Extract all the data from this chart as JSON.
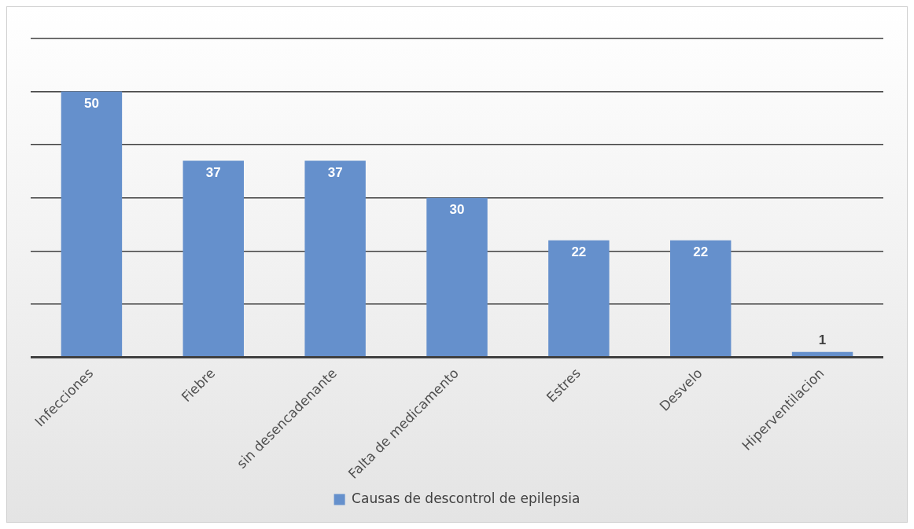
{
  "chart_data": {
    "type": "bar",
    "categories": [
      "Infecciones",
      "Fiebre",
      "sin desencadenante",
      "Falta de medicamento",
      "Estres",
      "Desvelo",
      "Hiperventilacion"
    ],
    "series": [
      {
        "name": "Causas de descontrol de epilepsia",
        "color": "#6590cc",
        "values": [
          50,
          37,
          37,
          30,
          22,
          22,
          1
        ]
      }
    ],
    "ylim": [
      0,
      60
    ],
    "yticks": [
      {
        "value": 0,
        "label": null
      },
      {
        "value": 10,
        "label": null
      },
      {
        "value": 20,
        "label": null
      },
      {
        "value": 30,
        "label": null
      },
      {
        "value": 40,
        "label": null
      },
      {
        "value": 50,
        "label": null
      },
      {
        "value": 60,
        "label": null
      }
    ],
    "grid": "y",
    "tick_labels": "x",
    "data_labels": true,
    "legend": "bottom"
  }
}
